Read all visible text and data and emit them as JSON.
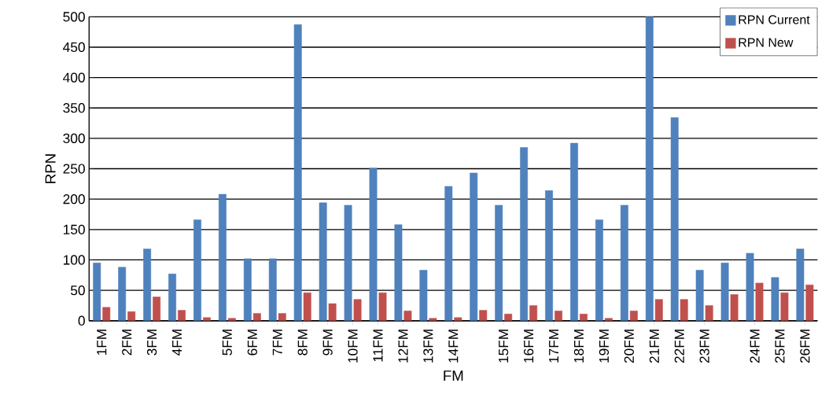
{
  "chart_data": {
    "type": "bar",
    "xlabel": "FM",
    "ylabel": "RPN",
    "categories": [
      "1FM",
      "2FM",
      "3FM",
      "4FM",
      null,
      "5FM",
      "6FM",
      "7FM",
      "8FM",
      "9FM",
      "10FM",
      "11FM",
      "12FM",
      "13FM",
      "14FM",
      null,
      "15FM",
      "16FM",
      "17FM",
      "18FM",
      "19FM",
      "20FM",
      "21FM",
      "22FM",
      "23FM",
      null,
      "24FM",
      "25FM",
      "26FM"
    ],
    "series": [
      {
        "name": "RPN Current",
        "color": "#4f81bd",
        "values": [
          95,
          88,
          118,
          77,
          166,
          208,
          102,
          102,
          487,
          194,
          190,
          251,
          158,
          83,
          221,
          243,
          190,
          285,
          214,
          292,
          166,
          190,
          500,
          334,
          83,
          95,
          111,
          71,
          118
        ]
      },
      {
        "name": "RPN New",
        "color": "#c0504d",
        "values": [
          22,
          15,
          39,
          17,
          5,
          4,
          12,
          12,
          46,
          28,
          35,
          46,
          16,
          4,
          5,
          17,
          11,
          25,
          16,
          11,
          4,
          16,
          35,
          35,
          25,
          43,
          62,
          46,
          59
        ]
      }
    ],
    "ylim": [
      0,
      500
    ],
    "yticks": [
      0,
      50,
      100,
      150,
      200,
      250,
      300,
      350,
      400,
      450,
      500
    ],
    "grid": "y",
    "legend": "top right"
  }
}
